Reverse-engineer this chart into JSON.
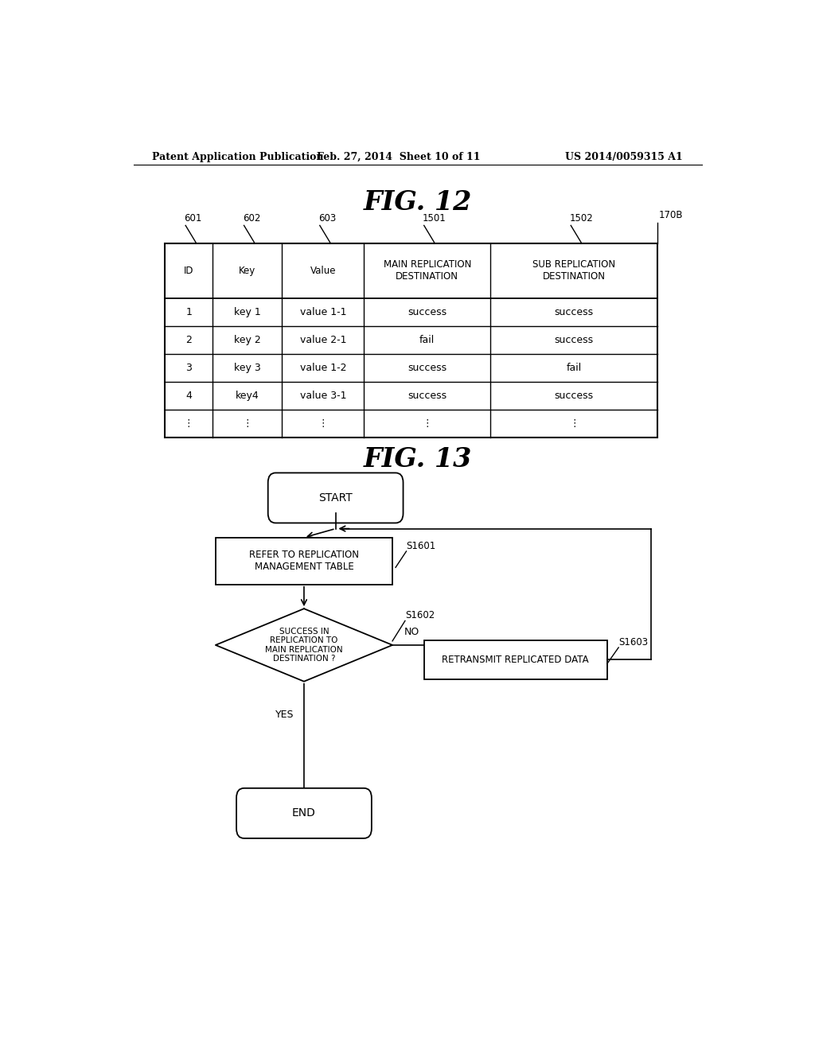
{
  "bg_color": "#ffffff",
  "header_left": "Patent Application Publication",
  "header_mid": "Feb. 27, 2014  Sheet 10 of 11",
  "header_right": "US 2014/0059315 A1",
  "fig12_title": "FIG. 12",
  "fig13_title": "FIG. 13",
  "table": {
    "col_labels": [
      "ID",
      "Key",
      "Value",
      "MAIN REPLICATION\nDESTINATION",
      "SUB REPLICATION\nDESTINATION"
    ],
    "col_refs": [
      "601",
      "602",
      "603",
      "1501",
      "1502"
    ],
    "table_ref": "170B",
    "rows": [
      [
        "1",
        "key 1",
        "value 1-1",
        "success",
        "success"
      ],
      [
        "2",
        "key 2",
        "value 2-1",
        "fail",
        "success"
      ],
      [
        "3",
        "key 3",
        "value 1-2",
        "success",
        "fail"
      ],
      [
        "4",
        "key4",
        "value 3-1",
        "success",
        "success"
      ],
      [
        "⋮",
        "⋮",
        "⋮",
        "⋮",
        "⋮"
      ]
    ]
  }
}
